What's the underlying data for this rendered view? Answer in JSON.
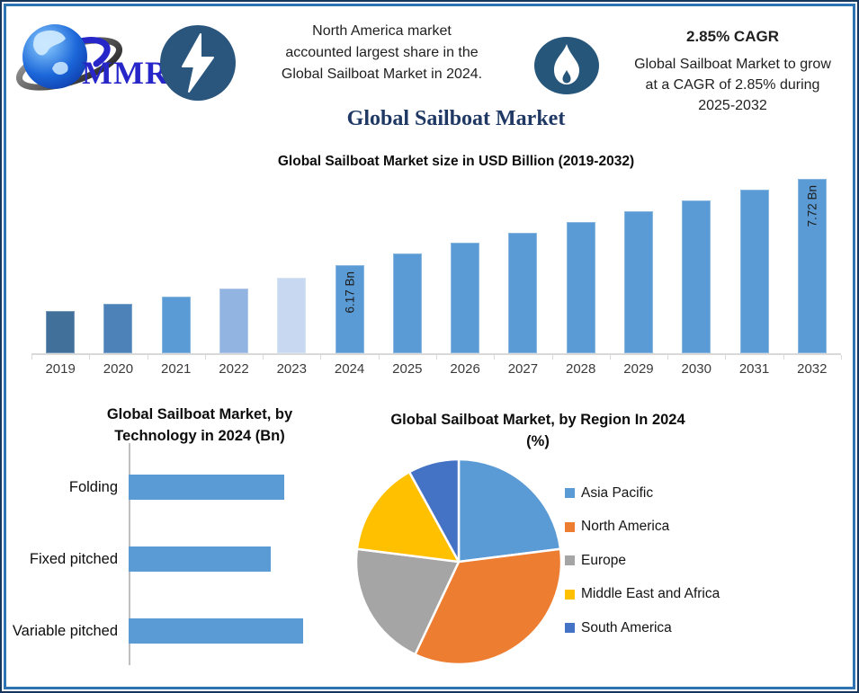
{
  "page_title": "Global Sailboat Market",
  "header": {
    "logo_text": "MMR",
    "highlight_left": {
      "lines": [
        "North America market",
        "accounted largest share in the",
        "Global Sailboat Market in 2024."
      ]
    },
    "highlight_right": {
      "title": "2.85% CAGR",
      "lines": [
        "Global Sailboat Market to grow",
        "at a CAGR of 2.85% during",
        "2025-2032"
      ]
    }
  },
  "colors": {
    "accent_navy": "#1F3864",
    "border_blue": "#2E74B5",
    "badge_blue": "#2A567D",
    "primary_bar_blue": "#5B9BD5",
    "logo_blue": "#2727C9",
    "axis_gray": "#D9D9D9"
  },
  "chart_data": [
    {
      "type": "bar",
      "title": "Global Sailboat Market size in USD Billion (2019-2032)",
      "categories": [
        "2019",
        "2020",
        "2021",
        "2022",
        "2023",
        "2024",
        "2025",
        "2026",
        "2027",
        "2028",
        "2029",
        "2030",
        "2031",
        "2032"
      ],
      "values": [
        5.35,
        5.48,
        5.62,
        5.76,
        5.95,
        6.17,
        6.38,
        6.57,
        6.76,
        6.95,
        7.14,
        7.33,
        7.52,
        7.72
      ],
      "bar_labels": [
        "",
        "",
        "",
        "",
        "",
        "6.17 Bn",
        "",
        "",
        "",
        "",
        "",
        "",
        "",
        "7.72 Bn"
      ],
      "bar_colors": [
        "#41709B",
        "#4C82B8",
        "#5B9BD5",
        "#92B4E0",
        "#C7D8F0",
        "#5B9BD5",
        "#5B9BD5",
        "#5B9BD5",
        "#5B9BD5",
        "#5B9BD5",
        "#5B9BD5",
        "#5B9BD5",
        "#5B9BD5",
        "#5B9BD5"
      ],
      "ylabel": "USD Billion",
      "ylim": [
        4.6,
        7.75
      ],
      "grid": false,
      "legend": false
    },
    {
      "type": "bar",
      "orientation": "horizontal",
      "title": "Global Sailboat Market, by Technology in 2024 (Bn)",
      "categories": [
        "Folding",
        "Fixed pitched",
        "Variable pitched"
      ],
      "values": [
        2.0,
        1.83,
        2.24
      ],
      "xlim": [
        0,
        2.5
      ],
      "bar_color": "#5B9BD5",
      "grid": false,
      "legend": false
    },
    {
      "type": "pie",
      "title": "Global Sailboat Market, by Region In 2024 (%)",
      "labels": [
        "Asia Pacific",
        "North America",
        "Europe",
        "Middle East and Africa",
        "South America"
      ],
      "values": [
        23,
        34,
        20,
        15,
        8
      ],
      "colors": [
        "#5B9BD5",
        "#ED7D31",
        "#A5A5A5",
        "#FFC000",
        "#4472C4"
      ],
      "legend_position": "right",
      "start_angle_deg": 0
    }
  ]
}
